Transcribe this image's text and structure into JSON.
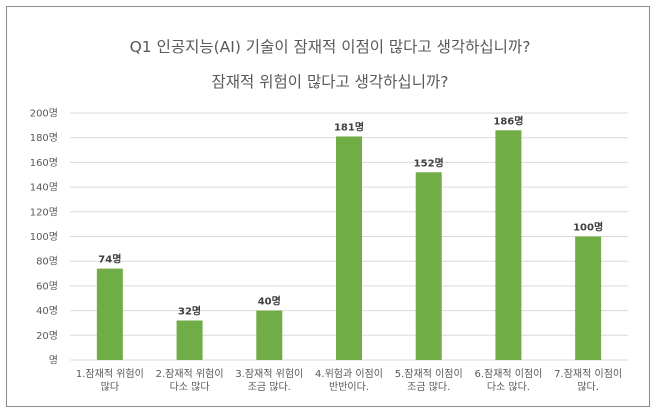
{
  "chart_data": {
    "type": "bar",
    "title": "Q1 인공지능(AI) 기술이 잠재적 이점이 많다고 생각하십니까?",
    "subtitle": "잠재적 위험이 많다고 생각하십니까?",
    "categories": [
      [
        "1.잠재적 위험이",
        "많다"
      ],
      [
        "2.잠재적 위험이",
        "다소 많다"
      ],
      [
        "3.잠재적 위험이",
        "조금 많다."
      ],
      [
        "4.위험과 이점이",
        "반반이다."
      ],
      [
        "5.잠재적 이점이",
        "조금 많다."
      ],
      [
        "6.잠재적 이점이",
        "다소 많다."
      ],
      [
        "7.잠재적 이점이",
        "많다."
      ]
    ],
    "values": [
      74,
      32,
      40,
      181,
      152,
      186,
      100
    ],
    "data_labels": [
      "74명",
      "32명",
      "40명",
      "181명",
      "152명",
      "186명",
      "100명"
    ],
    "y_ticks": [
      "명",
      "20명",
      "40명",
      "60명",
      "80명",
      "100명",
      "120명",
      "140명",
      "160명",
      "180명",
      "200명"
    ],
    "ylim": [
      0,
      200
    ],
    "y_step": 20,
    "grid": true,
    "bar_color": "#70ad47",
    "grid_color": "#d9d9d9"
  }
}
